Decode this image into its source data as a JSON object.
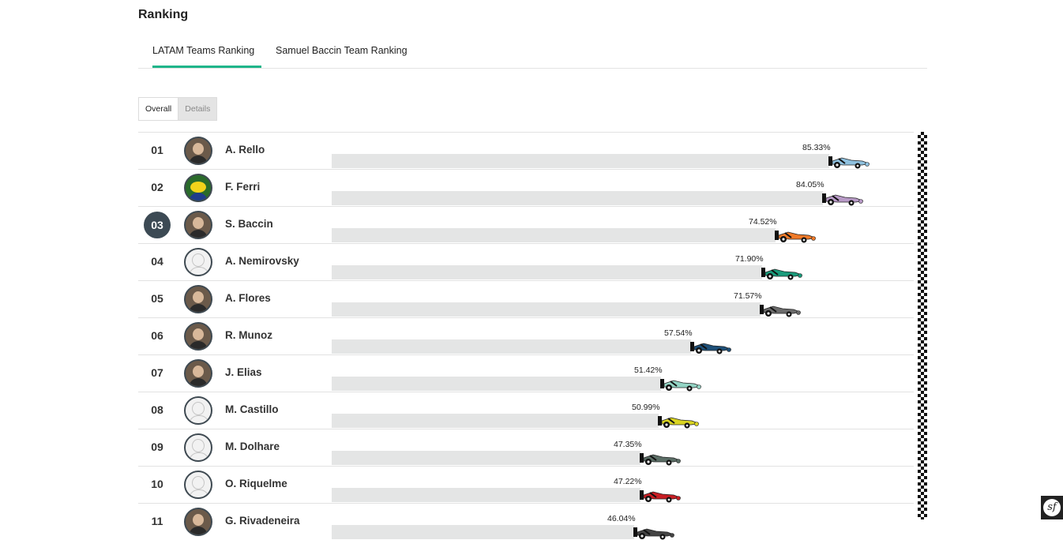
{
  "page": {
    "title": "Ranking"
  },
  "tabs": [
    {
      "label": "LATAM Teams Ranking",
      "active": true
    },
    {
      "label": "Samuel Baccin Team Ranking",
      "active": false
    }
  ],
  "view_toggle": {
    "overall_label": "Overall",
    "details_label": "Details",
    "selected": "Overall"
  },
  "ranking": [
    {
      "position": "01",
      "name": "A. Rello",
      "percent": "85.33%",
      "value": 85.33,
      "car_color": "#8fc1df",
      "avatar": "photo",
      "highlight": false
    },
    {
      "position": "02",
      "name": "F. Ferri",
      "percent": "84.05%",
      "value": 84.05,
      "car_color": "#b89ac7",
      "avatar": "helmet",
      "highlight": false
    },
    {
      "position": "03",
      "name": "S. Baccin",
      "percent": "74.52%",
      "value": 74.52,
      "car_color": "#f07a28",
      "avatar": "photo",
      "highlight": true
    },
    {
      "position": "04",
      "name": "A. Nemirovsky",
      "percent": "71.90%",
      "value": 71.9,
      "car_color": "#1a9b7b",
      "avatar": "placeholder",
      "highlight": false
    },
    {
      "position": "05",
      "name": "A. Flores",
      "percent": "71.57%",
      "value": 71.57,
      "car_color": "#6b6b6b",
      "avatar": "photo",
      "highlight": false
    },
    {
      "position": "06",
      "name": "R. Munoz",
      "percent": "57.54%",
      "value": 57.54,
      "car_color": "#1d4f78",
      "avatar": "photo",
      "highlight": false
    },
    {
      "position": "07",
      "name": "J. Elias",
      "percent": "51.42%",
      "value": 51.42,
      "car_color": "#93d4c4",
      "avatar": "photo",
      "highlight": false
    },
    {
      "position": "08",
      "name": "M. Castillo",
      "percent": "50.99%",
      "value": 50.99,
      "car_color": "#d9d421",
      "avatar": "placeholder",
      "highlight": false
    },
    {
      "position": "09",
      "name": "M. Dolhare",
      "percent": "47.35%",
      "value": 47.35,
      "car_color": "#5b6e66",
      "avatar": "placeholder",
      "highlight": false
    },
    {
      "position": "10",
      "name": "O. Riquelme",
      "percent": "47.22%",
      "value": 47.22,
      "car_color": "#c81e24",
      "avatar": "placeholder",
      "highlight": false
    },
    {
      "position": "11",
      "name": "G. Rivadeneira",
      "percent": "46.04%",
      "value": 46.04,
      "car_color": "#444444",
      "avatar": "photo",
      "highlight": false
    }
  ],
  "icons": {
    "finish_line": "checkered-flag-icon",
    "car": "race-car-icon",
    "badge": "symfony-icon"
  }
}
